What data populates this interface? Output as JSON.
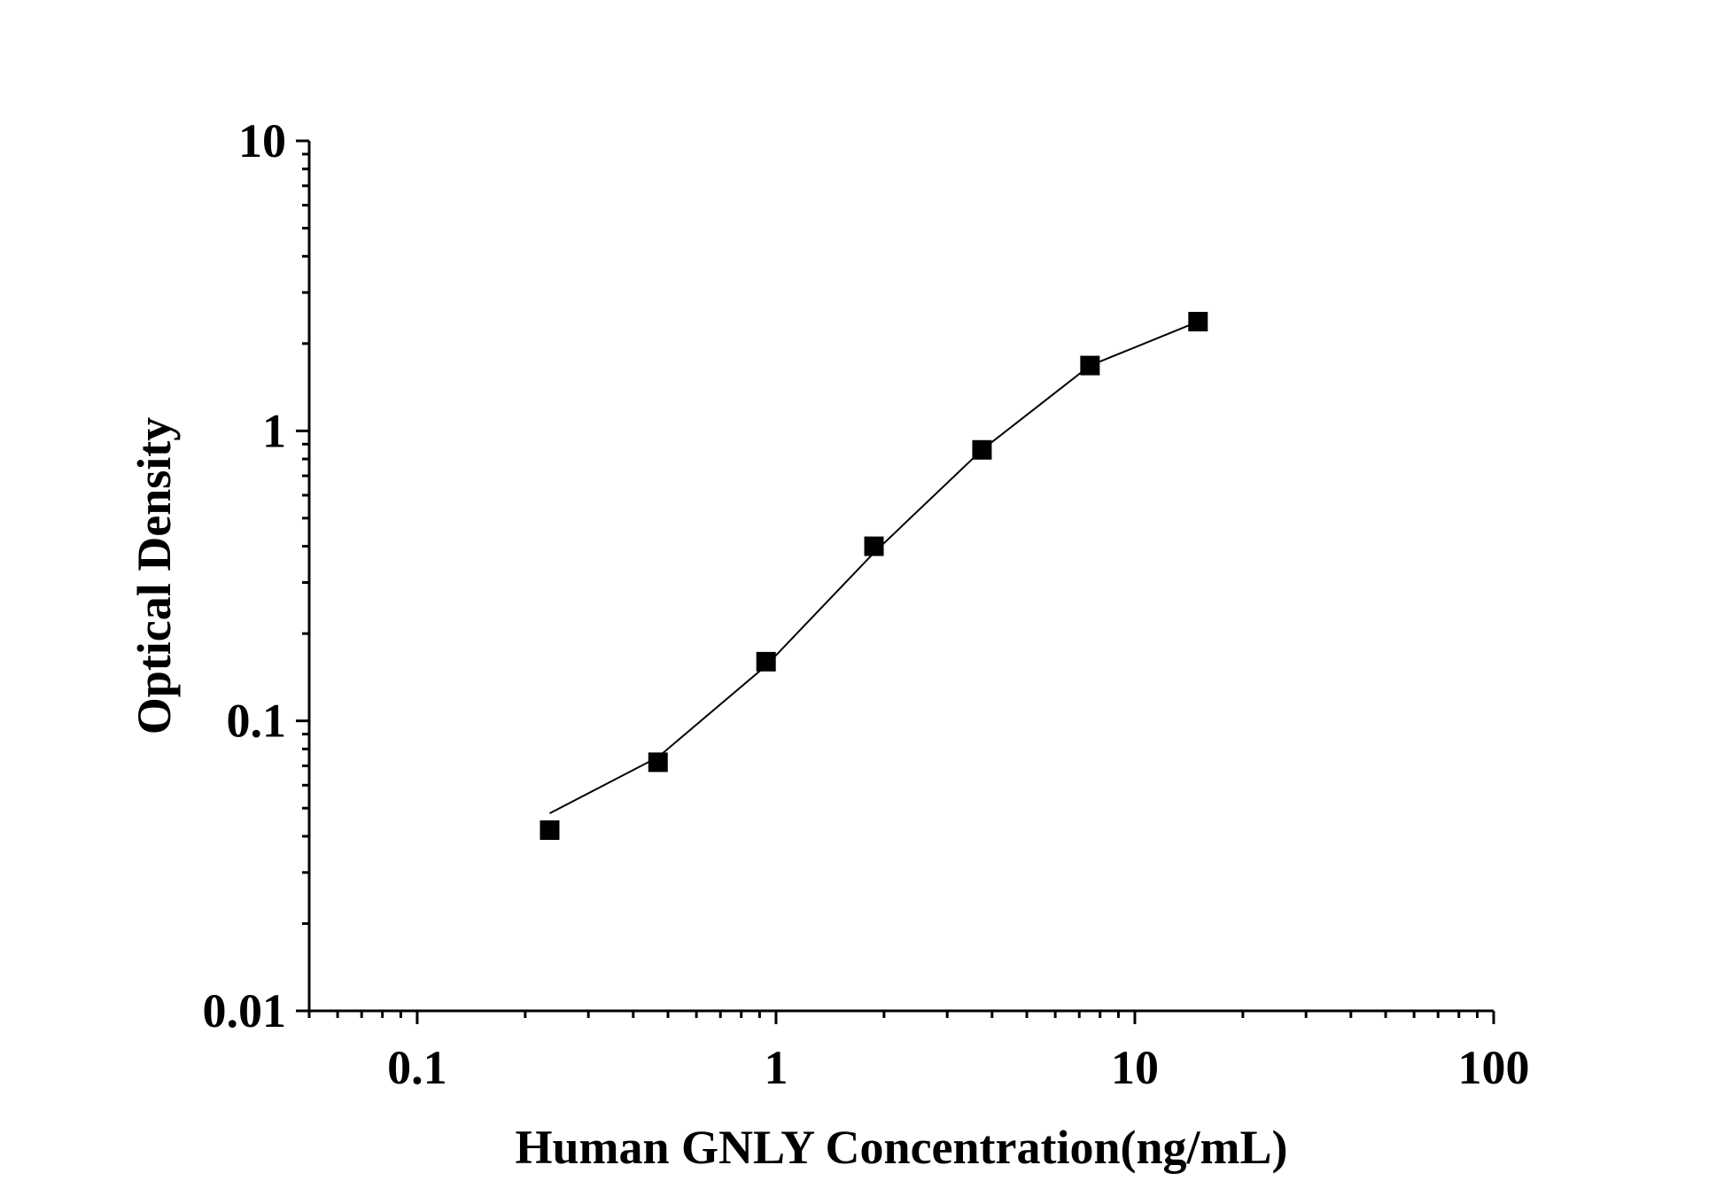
{
  "chart_data": {
    "type": "line",
    "xlabel": "Human GNLY Concentration(ng/mL)",
    "ylabel": "Optical Density",
    "x_scale": "log",
    "y_scale": "log",
    "xlim": [
      0.05,
      100
    ],
    "ylim": [
      0.01,
      10
    ],
    "x_ticks": [
      {
        "value": 0.1,
        "label": "0.1"
      },
      {
        "value": 1,
        "label": "1"
      },
      {
        "value": 10,
        "label": "10"
      },
      {
        "value": 100,
        "label": "100"
      }
    ],
    "y_ticks": [
      {
        "value": 0.01,
        "label": "0.01"
      },
      {
        "value": 0.1,
        "label": "0.1"
      },
      {
        "value": 1,
        "label": "1"
      },
      {
        "value": 10,
        "label": "10"
      }
    ],
    "grid": false,
    "series": [
      {
        "marker": "square",
        "color": "#000000",
        "x": [
          0.234,
          0.469,
          0.938,
          1.875,
          3.75,
          7.5,
          15
        ],
        "y": [
          0.042,
          0.072,
          0.16,
          0.4,
          0.86,
          1.68,
          2.38
        ]
      }
    ],
    "fit_curve": {
      "color": "#000000",
      "x": [
        0.234,
        0.469,
        0.938,
        1.875,
        3.75,
        7.5,
        15
      ],
      "y": [
        0.048,
        0.075,
        0.155,
        0.38,
        0.86,
        1.68,
        2.38
      ]
    }
  }
}
